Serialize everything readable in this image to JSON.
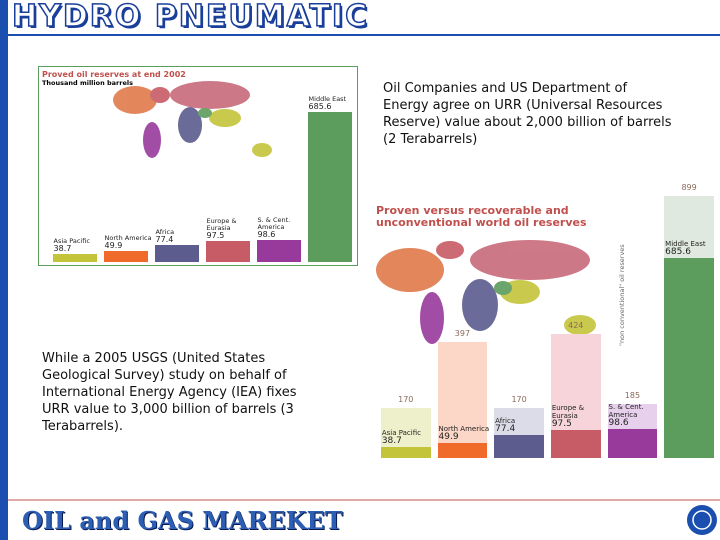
{
  "header": {
    "title": "HYDRO PNEUMATIC"
  },
  "texts": [
    "Oil Companies and US Department of Energy agree on URR (Universal Resources Reserve) value about 2,000 billion of barrels (2 Terabarrels)",
    "While a 2005 USGS (United States Geological Survey) study on behalf of International Energy Agency (IEA) fixes URR value to 3,000 billion of barrels (3 Terabarrels)."
  ],
  "chart_data": [
    {
      "type": "bar",
      "title": "Proved oil reserves at end 2002",
      "subtitle": "Thousand million barrels",
      "categories": [
        "Asia Pacific",
        "North America",
        "Africa",
        "Europe & Eurasia",
        "S. & Cent. America",
        "Middle East"
      ],
      "values": [
        38.7,
        49.9,
        77.4,
        97.5,
        98.6,
        685.6
      ],
      "colors": [
        "#c4c43a",
        "#f06a2a",
        "#5c5c8e",
        "#c85c66",
        "#983a9c",
        "#5c9c5c"
      ]
    },
    {
      "type": "bar",
      "title": "Proven versus recoverable and unconventional world oil reserves",
      "annotation": "\"non conventional\" oil reserves",
      "categories": [
        "Asia Pacific",
        "North America",
        "Africa",
        "Europe & Eurasia",
        "S. & Cent. America",
        "Middle East"
      ],
      "series": [
        {
          "values": [
            170,
            397,
            170,
            424,
            185,
            899
          ],
          "colors": [
            "#eef0cc",
            "#fcd6c6",
            "#dcdce8",
            "#f6d4da",
            "#e6d0ec",
            "#dfe9df"
          ]
        },
        {
          "values": [
            38.7,
            49.9,
            77.4,
            97.5,
            98.6,
            685.6
          ],
          "colors": [
            "#c4c43a",
            "#f06a2a",
            "#5c5c8e",
            "#c85c66",
            "#983a9c",
            "#5c9c5c"
          ]
        }
      ]
    }
  ],
  "footer": {
    "title": "OIL and GAS MAREKET"
  }
}
